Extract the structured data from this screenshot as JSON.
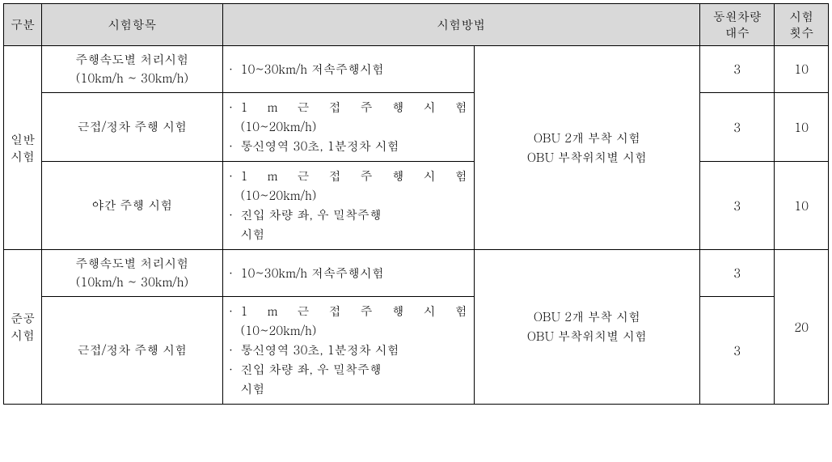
{
  "headers": {
    "gubun": "구분",
    "item": "시험항목",
    "method": "시험방법",
    "vehicles_line1": "동원차량",
    "vehicles_line2": "대수",
    "trials_line1": "시험",
    "trials_line2": "횟수"
  },
  "groups": {
    "general_line1": "일반",
    "general_line2": "시험",
    "completion_line1": "준공",
    "completion_line2": "시험"
  },
  "items": {
    "speed_line1": "주행속도별 처리시험",
    "speed_line2": "(10km/h ~ 30km/h)",
    "proximity": "근접/정차 주행 시험",
    "night": "야간 주행 시험"
  },
  "methods": {
    "low_speed": "10~30km/h 저속주행시험",
    "close_1m_line1": "1 m 근 접 주 행 시 험",
    "close_1m_line2": "(10~20km/h)",
    "comm_stop": "통신영역 30초, 1분정차 시험",
    "entry_close_line1": "진입 차량 좌, 우 밀착주행",
    "entry_close_line2": "시험",
    "obu_line1": "OBU 2개 부착 시험",
    "obu_line2": "OBU 부착위치별 시험"
  },
  "counts": {
    "three": "3",
    "ten": "10",
    "twenty": "20"
  },
  "bullet": "∙"
}
